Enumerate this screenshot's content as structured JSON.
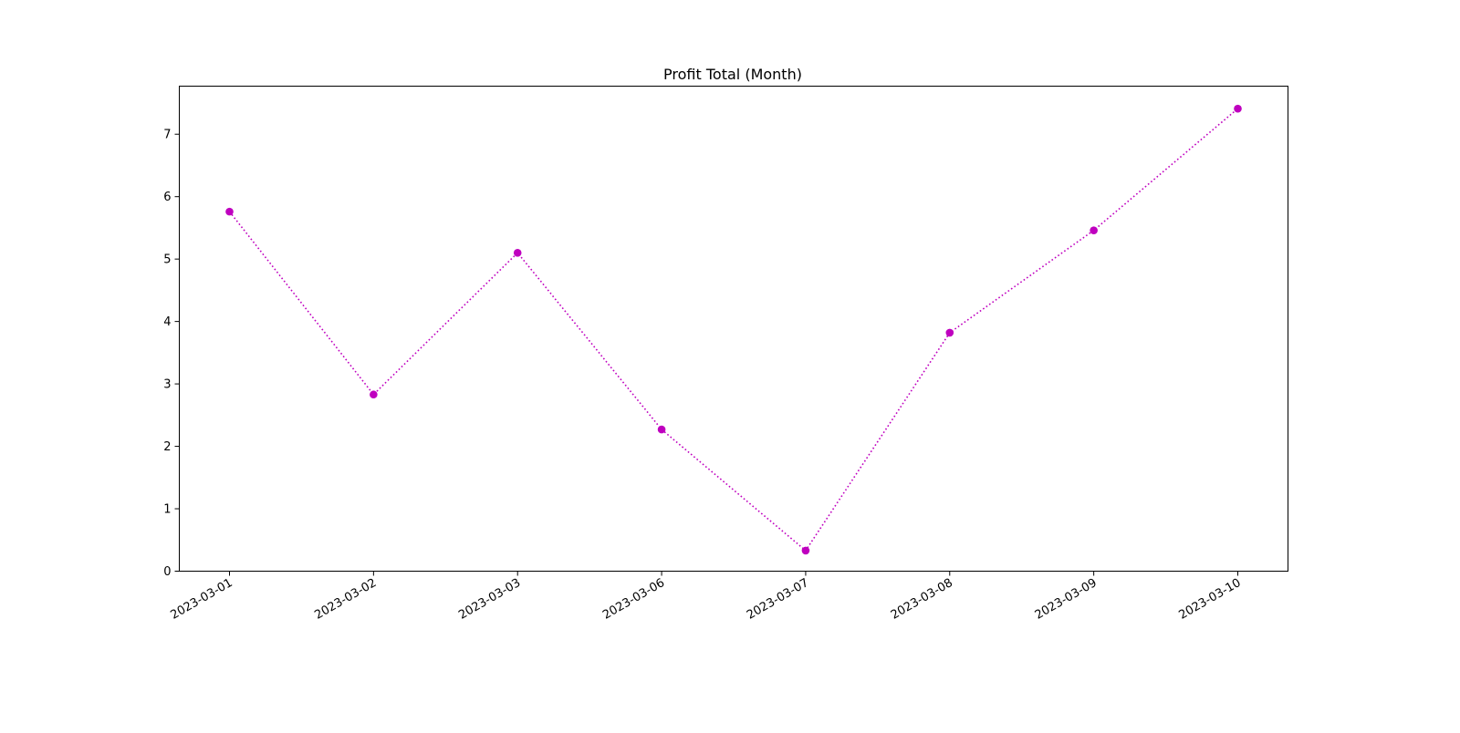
{
  "chart_data": {
    "type": "line",
    "title": "Profit Total (Month)",
    "xlabel": "",
    "ylabel": "",
    "x": [
      "2023-03-01",
      "2023-03-02",
      "2023-03-03",
      "2023-03-06",
      "2023-03-07",
      "2023-03-08",
      "2023-03-09",
      "2023-03-10"
    ],
    "series": [
      {
        "values": [
          5.76,
          2.83,
          5.1,
          2.27,
          0.33,
          3.82,
          5.46,
          7.41
        ],
        "color": "#bf00bf",
        "line_style": "dotted",
        "marker": "circle"
      }
    ],
    "y_ticks": [
      "0",
      "1",
      "2",
      "3",
      "4",
      "5",
      "6",
      "7"
    ],
    "ylim": [
      0,
      7.77
    ],
    "grid": false,
    "legend": "none"
  }
}
